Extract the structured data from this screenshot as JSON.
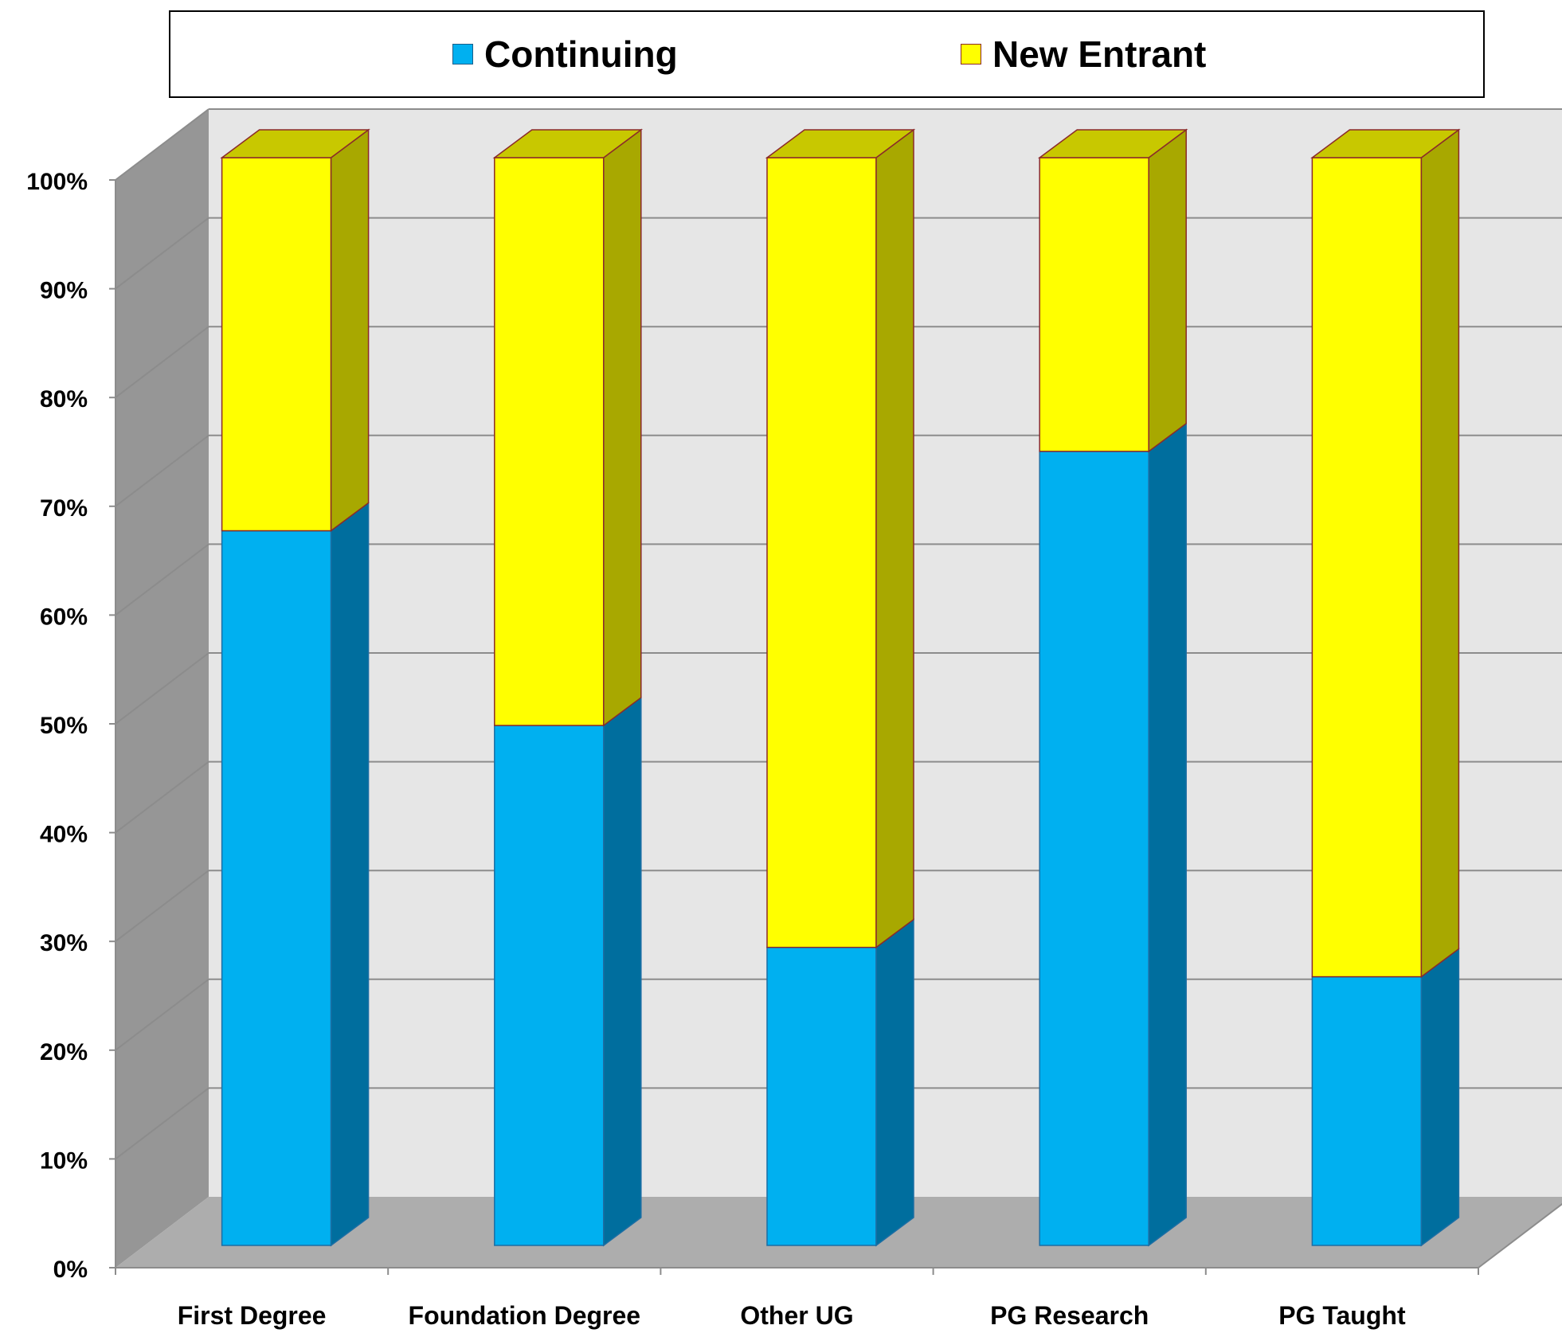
{
  "chart_data": {
    "type": "bar",
    "stacked": true,
    "percent_stacked": true,
    "three_d": true,
    "categories": [
      "First Degree",
      "Foundation Degree",
      "Other UG",
      "PG Research",
      "PG Taught"
    ],
    "series": [
      {
        "name": "Continuing",
        "values": [
          65.7,
          47.8,
          27.4,
          73.0,
          24.7
        ],
        "color": "#00B0F0",
        "side_color": "#006E9E"
      },
      {
        "name": "New Entrant",
        "values": [
          34.3,
          52.2,
          72.6,
          27.0,
          75.3
        ],
        "color": "#FFFF00",
        "side_color": "#A8A800"
      }
    ],
    "y_ticks": [
      "0%",
      "10%",
      "20%",
      "30%",
      "40%",
      "50%",
      "60%",
      "70%",
      "80%",
      "90%",
      "100%"
    ],
    "ylim": [
      0,
      100
    ],
    "grid": true,
    "legend_position": "top",
    "title": "",
    "xlabel": "",
    "ylabel": ""
  }
}
